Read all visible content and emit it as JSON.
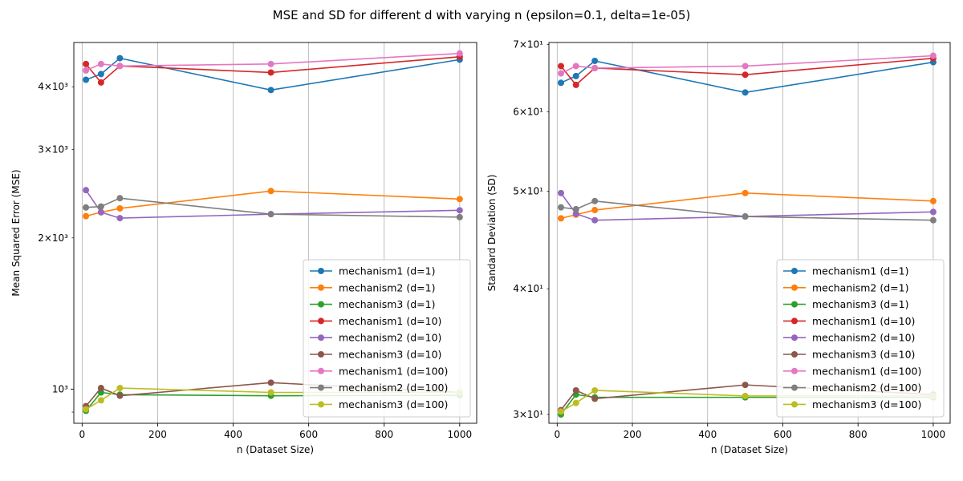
{
  "figure": {
    "suptitle": "MSE and SD for different d with varying n (epsilon=0.1, delta=1e-05)"
  },
  "chart_data": [
    {
      "type": "line",
      "yscale": "log",
      "xlabel": "n (Dataset Size)",
      "ylabel": "Mean Squared Error (MSE)",
      "xlim": [
        -22,
        1045
      ],
      "ylim": [
        855,
        4900
      ],
      "xticks": [
        0,
        200,
        400,
        600,
        800,
        1000
      ],
      "xtick_labels": [
        "0",
        "200",
        "400",
        "600",
        "800",
        "1000"
      ],
      "yticks_major": [
        1000
      ],
      "yticks_major_labels": [
        "10³"
      ],
      "yticks_labeled_minor": [
        2000,
        3000,
        4000
      ],
      "yticks_labeled_minor_labels": [
        "2×10³",
        "3×10³",
        "4×10³"
      ],
      "yticks_minor": [
        900,
        2000,
        3000,
        4000
      ],
      "grid": "x",
      "legend_position": "lower-right",
      "x": [
        10,
        50,
        100,
        500,
        1000
      ],
      "series": [
        {
          "name": "mechanism1 (d=1)",
          "color": "#1f77b4",
          "values": [
            4130,
            4240,
            4560,
            3940,
            4530
          ]
        },
        {
          "name": "mechanism2 (d=1)",
          "color": "#ff7f0e",
          "values": [
            2210,
            2250,
            2290,
            2480,
            2390
          ]
        },
        {
          "name": "mechanism3 (d=1)",
          "color": "#2ca02c",
          "values": [
            905,
            985,
            975,
            970,
            972
          ]
        },
        {
          "name": "mechanism1 (d=10)",
          "color": "#d62728",
          "values": [
            4440,
            4080,
            4400,
            4270,
            4590
          ]
        },
        {
          "name": "mechanism2 (d=10)",
          "color": "#9467bd",
          "values": [
            2490,
            2250,
            2190,
            2230,
            2270
          ]
        },
        {
          "name": "mechanism3 (d=10)",
          "color": "#8c564b",
          "values": [
            925,
            1005,
            970,
            1030,
            985
          ]
        },
        {
          "name": "mechanism1 (d=100)",
          "color": "#e377c2",
          "values": [
            4310,
            4440,
            4400,
            4440,
            4660
          ]
        },
        {
          "name": "mechanism2 (d=100)",
          "color": "#7f7f7f",
          "values": [
            2300,
            2310,
            2400,
            2230,
            2200
          ]
        },
        {
          "name": "mechanism3 (d=100)",
          "color": "#bcbd22",
          "values": [
            912,
            950,
            1005,
            985,
            985
          ]
        }
      ]
    },
    {
      "type": "line",
      "yscale": "log",
      "xlabel": "n (Dataset Size)",
      "ylabel": "Standard Deviation (SD)",
      "xlim": [
        -22,
        1045
      ],
      "ylim": [
        29.4,
        70.3
      ],
      "xticks": [
        0,
        200,
        400,
        600,
        800,
        1000
      ],
      "xtick_labels": [
        "0",
        "200",
        "400",
        "600",
        "800",
        "1000"
      ],
      "yticks_major": [],
      "yticks_major_labels": [],
      "yticks_labeled_minor": [
        30,
        40,
        50,
        60,
        70
      ],
      "yticks_labeled_minor_labels": [
        "3×10¹",
        "4×10¹",
        "5×10¹",
        "6×10¹",
        "7×10¹"
      ],
      "yticks_minor": [
        30,
        40,
        50,
        60,
        70
      ],
      "grid": "x",
      "legend_position": "lower-right",
      "x": [
        10,
        50,
        100,
        500,
        1000
      ],
      "series": [
        {
          "name": "mechanism1 (d=1)",
          "color": "#1f77b4",
          "values": [
            64.1,
            65.1,
            67.4,
            62.7,
            67.2
          ]
        },
        {
          "name": "mechanism2 (d=1)",
          "color": "#ff7f0e",
          "values": [
            47.0,
            47.4,
            47.9,
            49.8,
            48.9
          ]
        },
        {
          "name": "mechanism3 (d=1)",
          "color": "#2ca02c",
          "values": [
            30.0,
            31.4,
            31.2,
            31.2,
            31.2
          ]
        },
        {
          "name": "mechanism1 (d=10)",
          "color": "#d62728",
          "values": [
            66.6,
            63.8,
            66.3,
            65.3,
            67.8
          ]
        },
        {
          "name": "mechanism2 (d=10)",
          "color": "#9467bd",
          "values": [
            49.8,
            47.5,
            46.8,
            47.2,
            47.7
          ]
        },
        {
          "name": "mechanism3 (d=10)",
          "color": "#8c564b",
          "values": [
            30.3,
            31.7,
            31.1,
            32.1,
            31.4
          ]
        },
        {
          "name": "mechanism1 (d=100)",
          "color": "#e377c2",
          "values": [
            65.5,
            66.6,
            66.3,
            66.6,
            68.2
          ]
        },
        {
          "name": "mechanism2 (d=100)",
          "color": "#7f7f7f",
          "values": [
            48.2,
            48.0,
            48.9,
            47.2,
            46.8
          ]
        },
        {
          "name": "mechanism3 (d=100)",
          "color": "#bcbd22",
          "values": [
            30.2,
            30.8,
            31.7,
            31.3,
            31.3
          ]
        }
      ]
    }
  ]
}
